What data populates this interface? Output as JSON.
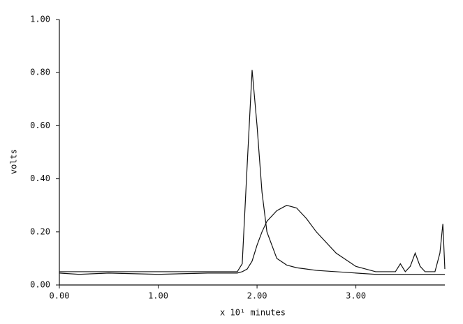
{
  "chart_data": {
    "type": "line",
    "xlabel": "x 10¹ minutes",
    "ylabel": "volts",
    "x": [
      0,
      0.2,
      0.5,
      1.0,
      1.5,
      1.7,
      1.8,
      1.85,
      1.9,
      1.95,
      2.0,
      2.05,
      2.1,
      2.2,
      2.3,
      2.4,
      2.5,
      2.6,
      2.8,
      3.0,
      3.2,
      3.4,
      3.45,
      3.5,
      3.55,
      3.6,
      3.65,
      3.7,
      3.8,
      3.85,
      3.88,
      3.9
    ],
    "series": [
      {
        "color": "#111111",
        "values": [
          0.05,
          0.05,
          0.05,
          0.05,
          0.05,
          0.05,
          0.05,
          0.08,
          0.45,
          0.81,
          0.6,
          0.35,
          0.2,
          0.1,
          0.075,
          0.065,
          0.06,
          0.055,
          0.05,
          0.045,
          0.04,
          0.04,
          0.04,
          0.04,
          0.04,
          0.04,
          0.04,
          0.04,
          0.04,
          0.04,
          0.04,
          0.04
        ]
      },
      {
        "color": "#111111",
        "values": [
          0.045,
          0.04,
          0.045,
          0.04,
          0.045,
          0.045,
          0.045,
          0.05,
          0.06,
          0.09,
          0.15,
          0.2,
          0.24,
          0.28,
          0.3,
          0.29,
          0.25,
          0.2,
          0.12,
          0.07,
          0.05,
          0.05,
          0.08,
          0.05,
          0.07,
          0.12,
          0.07,
          0.05,
          0.05,
          0.12,
          0.23,
          0.06
        ]
      }
    ],
    "xlim": [
      0,
      3.9
    ],
    "ylim": [
      0,
      1
    ],
    "xticks": [
      {
        "value": 0,
        "label": "0.00"
      },
      {
        "value": 1,
        "label": "1.00"
      },
      {
        "value": 2,
        "label": "2.00"
      },
      {
        "value": 3,
        "label": "3.00"
      }
    ],
    "yticks": [
      {
        "value": 0,
        "label": "0.00"
      },
      {
        "value": 0.2,
        "label": "0.20"
      },
      {
        "value": 0.4,
        "label": "0.40"
      },
      {
        "value": 0.6,
        "label": "0.60"
      },
      {
        "value": 0.8,
        "label": "0.80"
      },
      {
        "value": 1,
        "label": "1.00"
      }
    ],
    "grid": false
  }
}
